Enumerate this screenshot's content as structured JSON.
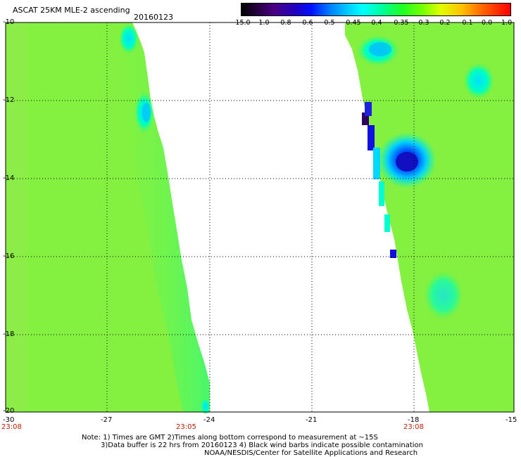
{
  "header": {
    "title": "ASCAT 25KM MLE-2 ascending",
    "date": "20160123"
  },
  "colorbar": {
    "labels": [
      "-15.0",
      "-1.0",
      "-0.8",
      "-0.6",
      "-0.5",
      "-0.45",
      "-0.4",
      "-0.35",
      "-0.3",
      "-0.2",
      "-0.1",
      "0.0",
      "1.0"
    ],
    "colors": [
      "#000000",
      "#4b0082",
      "#1010e0",
      "#0070ff",
      "#00c8ff",
      "#00ffff",
      "#00ff80",
      "#20ff00",
      "#80ff00",
      "#ffff00",
      "#ffa000",
      "#ff4000",
      "#ff0000"
    ]
  },
  "axes": {
    "y_labels": [
      "-10",
      "-12",
      "-14",
      "-16",
      "-18",
      "-20"
    ],
    "x_labels": [
      "-30",
      "-27",
      "-24",
      "-21",
      "-18",
      "-15"
    ]
  },
  "times": {
    "left": "23:08",
    "middle": "23:05",
    "right": "23:08"
  },
  "notes": {
    "line1": "Note: 1) Times are GMT 2)Times along bottom correspond to measurement at ~15S",
    "line2": "3)Data buffer is 22 hrs from 20160123 4) Black wind barbs indicate possible contamination",
    "line3": "NOAA/NESDIS/Center for Satellite Applications and Research"
  }
}
